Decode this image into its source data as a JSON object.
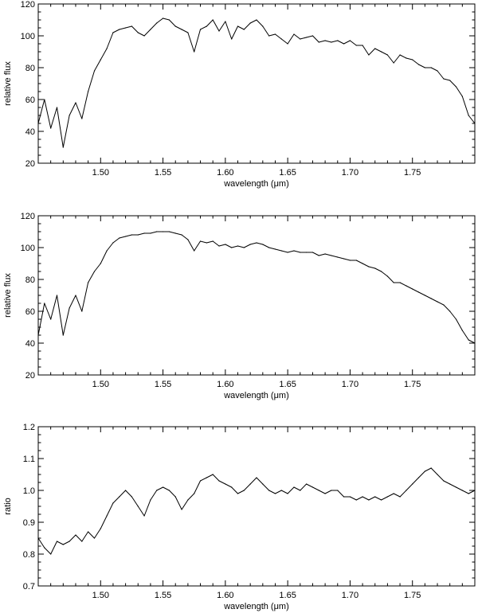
{
  "chart_data": [
    {
      "type": "line",
      "xlabel": "wavelength (μm)",
      "ylabel": "relative flux",
      "xlim": [
        1.45,
        1.8
      ],
      "ylim": [
        20,
        120
      ],
      "xticks": [
        1.5,
        1.55,
        1.6,
        1.65,
        1.7,
        1.75
      ],
      "xtick_labels": [
        "1.50",
        "1.55",
        "1.60",
        "1.65",
        "1.70",
        "1.75"
      ],
      "yticks": [
        20,
        40,
        60,
        80,
        100,
        120
      ],
      "ytick_labels": [
        "20",
        "40",
        "60",
        "80",
        "100",
        "120"
      ],
      "grid": false,
      "series": [
        {
          "x": [
            1.45,
            1.455,
            1.46,
            1.465,
            1.47,
            1.475,
            1.48,
            1.485,
            1.49,
            1.495,
            1.5,
            1.505,
            1.51,
            1.515,
            1.52,
            1.525,
            1.53,
            1.535,
            1.54,
            1.545,
            1.55,
            1.555,
            1.56,
            1.565,
            1.57,
            1.575,
            1.58,
            1.585,
            1.59,
            1.595,
            1.6,
            1.605,
            1.61,
            1.615,
            1.62,
            1.625,
            1.63,
            1.635,
            1.64,
            1.645,
            1.65,
            1.655,
            1.66,
            1.665,
            1.67,
            1.675,
            1.68,
            1.685,
            1.69,
            1.695,
            1.7,
            1.705,
            1.71,
            1.715,
            1.72,
            1.725,
            1.73,
            1.735,
            1.74,
            1.745,
            1.75,
            1.755,
            1.76,
            1.765,
            1.77,
            1.775,
            1.78,
            1.785,
            1.79,
            1.795,
            1.8
          ],
          "y": [
            45,
            60,
            42,
            55,
            30,
            50,
            58,
            48,
            65,
            78,
            85,
            92,
            102,
            104,
            105,
            106,
            102,
            100,
            104,
            108,
            111,
            110,
            106,
            104,
            102,
            90,
            104,
            106,
            110,
            103,
            109,
            98,
            106,
            104,
            108,
            110,
            106,
            100,
            101,
            98,
            95,
            101,
            98,
            99,
            100,
            96,
            97,
            96,
            97,
            95,
            97,
            94,
            94,
            88,
            92,
            90,
            88,
            83,
            88,
            86,
            85,
            82,
            80,
            80,
            78,
            73,
            72,
            68,
            62,
            50,
            45
          ]
        }
      ]
    },
    {
      "type": "line",
      "xlabel": "wavelength (μm)",
      "ylabel": "relative flux",
      "xlim": [
        1.45,
        1.8
      ],
      "ylim": [
        20,
        120
      ],
      "xticks": [
        1.5,
        1.55,
        1.6,
        1.65,
        1.7,
        1.75
      ],
      "xtick_labels": [
        "1.50",
        "1.55",
        "1.60",
        "1.65",
        "1.70",
        "1.75"
      ],
      "yticks": [
        20,
        40,
        60,
        80,
        100,
        120
      ],
      "ytick_labels": [
        "20",
        "40",
        "60",
        "80",
        "100",
        "120"
      ],
      "grid": false,
      "series": [
        {
          "x": [
            1.45,
            1.455,
            1.46,
            1.465,
            1.47,
            1.475,
            1.48,
            1.485,
            1.49,
            1.495,
            1.5,
            1.505,
            1.51,
            1.515,
            1.52,
            1.525,
            1.53,
            1.535,
            1.54,
            1.545,
            1.55,
            1.555,
            1.56,
            1.565,
            1.57,
            1.575,
            1.58,
            1.585,
            1.59,
            1.595,
            1.6,
            1.605,
            1.61,
            1.615,
            1.62,
            1.625,
            1.63,
            1.635,
            1.64,
            1.645,
            1.65,
            1.655,
            1.66,
            1.665,
            1.67,
            1.675,
            1.68,
            1.685,
            1.69,
            1.695,
            1.7,
            1.705,
            1.71,
            1.715,
            1.72,
            1.725,
            1.73,
            1.735,
            1.74,
            1.745,
            1.75,
            1.755,
            1.76,
            1.765,
            1.77,
            1.775,
            1.78,
            1.785,
            1.79,
            1.795,
            1.8
          ],
          "y": [
            45,
            65,
            55,
            70,
            45,
            62,
            70,
            60,
            78,
            85,
            90,
            98,
            103,
            106,
            107,
            108,
            108,
            109,
            109,
            110,
            110,
            110,
            109,
            108,
            105,
            98,
            104,
            103,
            104,
            101,
            102,
            100,
            101,
            100,
            102,
            103,
            102,
            100,
            99,
            98,
            97,
            98,
            97,
            97,
            97,
            95,
            96,
            95,
            94,
            93,
            92,
            92,
            90,
            88,
            87,
            85,
            82,
            78,
            78,
            76,
            74,
            72,
            70,
            68,
            66,
            64,
            60,
            55,
            48,
            42,
            40
          ]
        }
      ]
    },
    {
      "type": "line",
      "xlabel": "wavelength (μm)",
      "ylabel": "ratio",
      "xlim": [
        1.45,
        1.8
      ],
      "ylim": [
        0.7,
        1.2
      ],
      "xticks": [
        1.5,
        1.55,
        1.6,
        1.65,
        1.7,
        1.75
      ],
      "xtick_labels": [
        "1.50",
        "1.55",
        "1.60",
        "1.65",
        "1.70",
        "1.75"
      ],
      "yticks": [
        0.7,
        0.8,
        0.9,
        1.0,
        1.1,
        1.2
      ],
      "ytick_labels": [
        "0.7",
        "0.8",
        "0.9",
        "1.0",
        "1.1",
        "1.2"
      ],
      "grid": false,
      "series": [
        {
          "x": [
            1.45,
            1.455,
            1.46,
            1.465,
            1.47,
            1.475,
            1.48,
            1.485,
            1.49,
            1.495,
            1.5,
            1.505,
            1.51,
            1.515,
            1.52,
            1.525,
            1.53,
            1.535,
            1.54,
            1.545,
            1.55,
            1.555,
            1.56,
            1.565,
            1.57,
            1.575,
            1.58,
            1.585,
            1.59,
            1.595,
            1.6,
            1.605,
            1.61,
            1.615,
            1.62,
            1.625,
            1.63,
            1.635,
            1.64,
            1.645,
            1.65,
            1.655,
            1.66,
            1.665,
            1.67,
            1.675,
            1.68,
            1.685,
            1.69,
            1.695,
            1.7,
            1.705,
            1.71,
            1.715,
            1.72,
            1.725,
            1.73,
            1.735,
            1.74,
            1.745,
            1.75,
            1.755,
            1.76,
            1.765,
            1.77,
            1.775,
            1.78,
            1.785,
            1.79,
            1.795,
            1.8
          ],
          "y": [
            0.85,
            0.82,
            0.8,
            0.84,
            0.83,
            0.84,
            0.86,
            0.84,
            0.87,
            0.85,
            0.88,
            0.92,
            0.96,
            0.98,
            1.0,
            0.98,
            0.95,
            0.92,
            0.97,
            1.0,
            1.01,
            1.0,
            0.98,
            0.94,
            0.97,
            0.99,
            1.03,
            1.04,
            1.05,
            1.03,
            1.02,
            1.01,
            0.99,
            1.0,
            1.02,
            1.04,
            1.02,
            1.0,
            0.99,
            1.0,
            0.99,
            1.01,
            1.0,
            1.02,
            1.01,
            1.0,
            0.99,
            1.0,
            1.0,
            0.98,
            0.98,
            0.97,
            0.98,
            0.97,
            0.98,
            0.97,
            0.98,
            0.99,
            0.98,
            1.0,
            1.02,
            1.04,
            1.06,
            1.07,
            1.05,
            1.03,
            1.02,
            1.01,
            1.0,
            0.99,
            1.0
          ]
        }
      ]
    }
  ]
}
